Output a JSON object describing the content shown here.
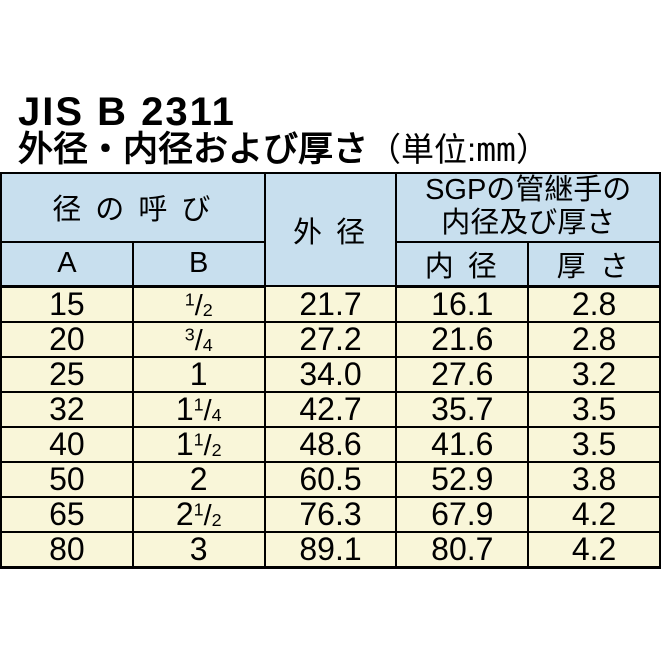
{
  "header": {
    "title": "JIS B 2311",
    "subtitle": "外径・内径および厚さ",
    "unit_open": "（単位:",
    "unit_mm": "mm",
    "unit_close": "）"
  },
  "table": {
    "header": {
      "size_designation": "径 の 呼 び",
      "col_a": "A",
      "col_b": "B",
      "outer_diameter": "外 径",
      "sgp_line1": "SGPの管継手の",
      "sgp_line2": "内径及び厚さ",
      "inner_diameter": "内 径",
      "thickness": "厚 さ"
    },
    "rows": [
      {
        "a": "15",
        "b_whole": "",
        "b_num": "1",
        "b_slash": "/",
        "b_den": "2",
        "od": "21.7",
        "id": "16.1",
        "t": "2.8"
      },
      {
        "a": "20",
        "b_whole": "",
        "b_num": "3",
        "b_slash": "/",
        "b_den": "4",
        "od": "27.2",
        "id": "21.6",
        "t": "2.8"
      },
      {
        "a": "25",
        "b_whole": "1",
        "b_num": "",
        "b_slash": "",
        "b_den": "",
        "od": "34.0",
        "id": "27.6",
        "t": "3.2"
      },
      {
        "a": "32",
        "b_whole": "1",
        "b_num": "1",
        "b_slash": "/",
        "b_den": "4",
        "od": "42.7",
        "id": "35.7",
        "t": "3.5"
      },
      {
        "a": "40",
        "b_whole": "1",
        "b_num": "1",
        "b_slash": "/",
        "b_den": "2",
        "od": "48.6",
        "id": "41.6",
        "t": "3.5"
      },
      {
        "a": "50",
        "b_whole": "2",
        "b_num": "",
        "b_slash": "",
        "b_den": "",
        "od": "60.5",
        "id": "52.9",
        "t": "3.8"
      },
      {
        "a": "65",
        "b_whole": "2",
        "b_num": "1",
        "b_slash": "/",
        "b_den": "2",
        "od": "76.3",
        "id": "67.9",
        "t": "4.2"
      },
      {
        "a": "80",
        "b_whole": "3",
        "b_num": "",
        "b_slash": "",
        "b_den": "",
        "od": "89.1",
        "id": "80.7",
        "t": "4.2"
      }
    ],
    "colors": {
      "header_bg": "#c8dfee",
      "row_bg": "#f9f6d9",
      "border": "#000000"
    }
  }
}
